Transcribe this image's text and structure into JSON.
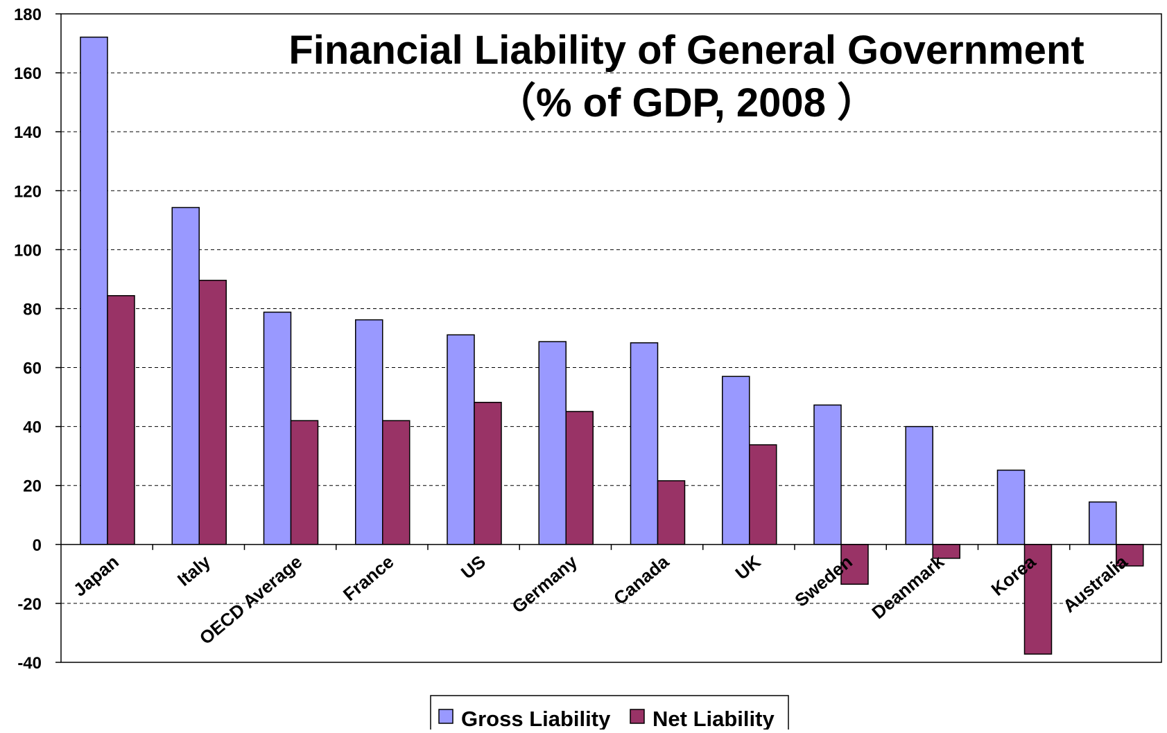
{
  "chart_data": {
    "type": "bar",
    "title": "Financial Liability of General Government",
    "subtitle": "（% of GDP, 2008 ）",
    "xlabel": "",
    "ylabel": "",
    "ylim": [
      -40,
      180
    ],
    "yticks": [
      180,
      160,
      140,
      120,
      100,
      80,
      60,
      40,
      20,
      0,
      -20,
      -40
    ],
    "grid": true,
    "legend_position": "bottom",
    "categories": [
      "Japan",
      "Italy",
      "OECD Average",
      "France",
      "US",
      "Germany",
      "Canada",
      "UK",
      "Sweden",
      "Deanmark",
      "Korea",
      "Australia"
    ],
    "series": [
      {
        "name": "Gross Liability",
        "color": "#9999ff",
        "values": [
          172.1,
          114.3,
          78.8,
          76.2,
          71.1,
          68.8,
          68.4,
          57.0,
          47.3,
          40.0,
          25.2,
          14.4
        ]
      },
      {
        "name": "Net Liability",
        "color": "#993366",
        "values": [
          84.4,
          89.6,
          42.0,
          42.0,
          48.2,
          45.1,
          21.6,
          33.8,
          -13.5,
          -4.7,
          -37.2,
          -7.3
        ]
      }
    ]
  }
}
